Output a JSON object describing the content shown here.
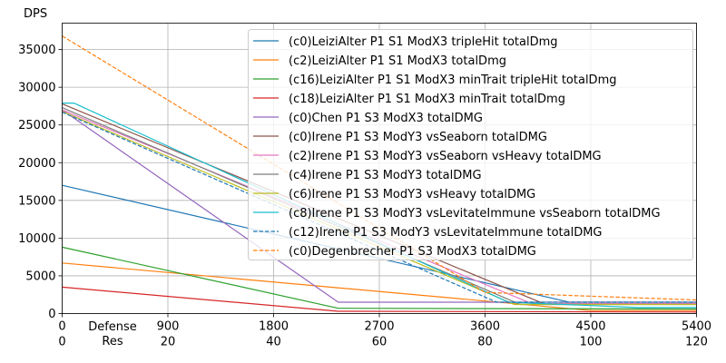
{
  "chart_data": {
    "type": "line",
    "title": "",
    "ylabel": "DPS",
    "xlabel_primary": "Defense",
    "xlabel_secondary": "Res",
    "xlim": [
      0,
      5400
    ],
    "ylim": [
      0,
      38500
    ],
    "grid": true,
    "legend_position": "top-right",
    "x_ticks": [
      "0",
      "900",
      "1800",
      "2700",
      "3600",
      "4500",
      "5400"
    ],
    "x_ticks_secondary": [
      "0",
      "20",
      "40",
      "60",
      "80",
      "100",
      "120"
    ],
    "y_ticks": [
      "0",
      "5000",
      "10000",
      "15000",
      "20000",
      "25000",
      "30000",
      "35000"
    ],
    "series": [
      {
        "name": "(c0)LeiziAlter P1 S1 ModX3 tripleHit totalDmg",
        "color": "#1f77b4",
        "dash": "solid",
        "points": [
          [
            0,
            17000
          ],
          [
            4320,
            1500
          ],
          [
            5400,
            1500
          ]
        ]
      },
      {
        "name": "(c2)LeiziAlter P1 S1 ModX3 totalDmg",
        "color": "#ff7f0e",
        "dash": "solid",
        "points": [
          [
            0,
            6700
          ],
          [
            4500,
            400
          ],
          [
            5400,
            400
          ]
        ]
      },
      {
        "name": "(c16)LeiziAlter P1 S1 ModX3 minTrait tripleHit totalDmg",
        "color": "#2ca02c",
        "dash": "solid",
        "points": [
          [
            0,
            8800
          ],
          [
            2350,
            700
          ],
          [
            5400,
            600
          ]
        ]
      },
      {
        "name": "(c18)LeiziAlter P1 S1 ModX3 minTrait totalDmg",
        "color": "#d62728",
        "dash": "solid",
        "points": [
          [
            0,
            3500
          ],
          [
            2350,
            300
          ],
          [
            5400,
            200
          ]
        ]
      },
      {
        "name": "(c0)Chen P1 S3 ModX3 totalDMG",
        "color": "#9467bd",
        "dash": "solid",
        "points": [
          [
            0,
            27000
          ],
          [
            2350,
            1500
          ],
          [
            5400,
            1500
          ]
        ]
      },
      {
        "name": "(c0)Irene P1 S3 ModY3 vsSeaborn totalDMG",
        "color": "#8c564b",
        "dash": "solid",
        "points": [
          [
            0,
            27800
          ],
          [
            4100,
            1300
          ],
          [
            5400,
            1300
          ]
        ]
      },
      {
        "name": "(c2)Irene P1 S3 ModY3 vsSeaborn vsHeavy totalDMG",
        "color": "#e377c2",
        "dash": "solid",
        "points": [
          [
            0,
            27000
          ],
          [
            4000,
            1300
          ],
          [
            5400,
            1300
          ]
        ]
      },
      {
        "name": "(c4)Irene P1 S3 ModY3 totalDMG",
        "color": "#7f7f7f",
        "dash": "solid",
        "points": [
          [
            0,
            27300
          ],
          [
            3900,
            1200
          ],
          [
            5400,
            1200
          ]
        ]
      },
      {
        "name": "(c6)Irene P1 S3 ModY3 vsHeavy totalDMG",
        "color": "#bcbd22",
        "dash": "solid",
        "points": [
          [
            0,
            26800
          ],
          [
            3850,
            1200
          ],
          [
            5400,
            1200
          ]
        ]
      },
      {
        "name": "(c8)Irene P1 S3 ModY3 vsLevitateImmune vsSeaborn totalDMG",
        "color": "#17becf",
        "dash": "solid",
        "points": [
          [
            0,
            27900
          ],
          [
            100,
            27900
          ],
          [
            3800,
            1500
          ],
          [
            4900,
            800
          ],
          [
            5400,
            800
          ]
        ]
      },
      {
        "name": "(c12)Irene P1 S3 ModY3 vsLevitateImmune totalDMG",
        "color": "#1f77b4",
        "dash": "dashed",
        "points": [
          [
            0,
            26700
          ],
          [
            3700,
            1500
          ],
          [
            5400,
            1500
          ]
        ]
      },
      {
        "name": "(c0)Degenbrecher P1 S3 ModX3 totalDMG",
        "color": "#ff7f0e",
        "dash": "dashed",
        "points": [
          [
            0,
            36800
          ],
          [
            3600,
            2800
          ],
          [
            5400,
            1800
          ]
        ]
      }
    ]
  }
}
